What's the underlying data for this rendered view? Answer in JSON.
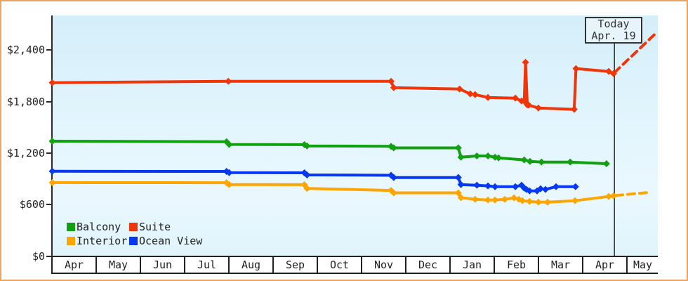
{
  "frame": {
    "border_color": "#e9a662"
  },
  "chart_data": {
    "type": "line",
    "x_unit_note": "x = months since the first April tick (0 = Apr 1); prices in USD read from y-axis",
    "x_axis": {
      "unit": "month",
      "labels": [
        "Apr",
        "May",
        "Jun",
        "Jul",
        "Aug",
        "Sep",
        "Oct",
        "Nov",
        "Dec",
        "Jan",
        "Feb",
        "Mar",
        "Apr",
        "May"
      ]
    },
    "y_axis": {
      "ticks": [
        0,
        600,
        1200,
        1800,
        2400
      ],
      "tick_labels": [
        "$0",
        "$600",
        "$1,200",
        "$1,800",
        "$2,400"
      ],
      "range": [
        0,
        2800
      ],
      "grid": false
    },
    "annotation": {
      "line1": "Today",
      "line2": "Apr. 19",
      "x": 12.67
    },
    "legend": {
      "position": "bottom-left",
      "entries": [
        {
          "label": "Balcony",
          "color": "#10a010"
        },
        {
          "label": "Suite",
          "color": "#f03508"
        },
        {
          "label": "Interior",
          "color": "#ffa500"
        },
        {
          "label": "Ocean View",
          "color": "#0538f0"
        }
      ]
    },
    "series": [
      {
        "name": "Balcony",
        "color": "#10a010",
        "points": [
          [
            -0.04,
            1340
          ],
          [
            3.9,
            1334
          ],
          [
            3.96,
            1302
          ],
          [
            5.66,
            1300
          ],
          [
            5.72,
            1285
          ],
          [
            7.62,
            1280
          ],
          [
            7.68,
            1262
          ],
          [
            9.14,
            1262
          ],
          [
            9.2,
            1154
          ],
          [
            9.56,
            1168
          ],
          [
            9.81,
            1168
          ],
          [
            9.97,
            1154
          ],
          [
            10.05,
            1146
          ],
          [
            10.63,
            1122
          ],
          [
            10.76,
            1105
          ],
          [
            11.02,
            1097
          ],
          [
            11.67,
            1097
          ],
          [
            12.49,
            1078
          ]
        ]
      },
      {
        "name": "Suite",
        "color": "#f03508",
        "points": [
          [
            -0.04,
            2022
          ],
          [
            3.94,
            2038
          ],
          [
            7.62,
            2038
          ],
          [
            7.68,
            1964
          ],
          [
            9.17,
            1948
          ],
          [
            9.41,
            1891
          ],
          [
            9.52,
            1883
          ],
          [
            9.81,
            1850
          ],
          [
            10.43,
            1842
          ],
          [
            10.57,
            1809
          ],
          [
            10.63,
            1809
          ],
          [
            10.66,
            2260
          ],
          [
            10.7,
            1764
          ],
          [
            10.73,
            1760
          ],
          [
            10.95,
            1727
          ],
          [
            11.76,
            1711
          ],
          [
            11.8,
            2186
          ],
          [
            12.54,
            2153
          ],
          [
            12.65,
            2128
          ]
        ],
        "forecast": [
          [
            12.67,
            2140
          ],
          [
            13.57,
            2580
          ]
        ]
      },
      {
        "name": "Interior",
        "color": "#ffa500",
        "points": [
          [
            -0.04,
            858
          ],
          [
            3.9,
            856
          ],
          [
            3.96,
            835
          ],
          [
            5.66,
            833
          ],
          [
            5.72,
            790
          ],
          [
            7.62,
            766
          ],
          [
            7.68,
            738
          ],
          [
            9.14,
            738
          ],
          [
            9.2,
            682
          ],
          [
            9.52,
            663
          ],
          [
            9.81,
            655
          ],
          [
            9.97,
            655
          ],
          [
            10.19,
            663
          ],
          [
            10.4,
            680
          ],
          [
            10.51,
            663
          ],
          [
            10.59,
            647
          ],
          [
            10.75,
            638
          ],
          [
            10.95,
            630
          ],
          [
            11.16,
            630
          ],
          [
            11.78,
            647
          ],
          [
            12.54,
            696
          ],
          [
            12.65,
            704
          ]
        ],
        "forecast": [
          [
            12.7,
            708
          ],
          [
            13.5,
            745
          ]
        ]
      },
      {
        "name": "Ocean View",
        "color": "#0538f0",
        "points": [
          [
            -0.04,
            990
          ],
          [
            3.9,
            988
          ],
          [
            3.96,
            974
          ],
          [
            5.66,
            972
          ],
          [
            5.72,
            947
          ],
          [
            7.62,
            943
          ],
          [
            7.68,
            917
          ],
          [
            9.14,
            917
          ],
          [
            9.2,
            835
          ],
          [
            9.56,
            827
          ],
          [
            9.81,
            819
          ],
          [
            9.97,
            810
          ],
          [
            10.43,
            810
          ],
          [
            10.57,
            827
          ],
          [
            10.63,
            794
          ],
          [
            10.68,
            778
          ],
          [
            10.75,
            761
          ],
          [
            10.92,
            761
          ],
          [
            11.0,
            786
          ],
          [
            11.11,
            778
          ],
          [
            11.35,
            810
          ],
          [
            11.79,
            810
          ]
        ]
      }
    ]
  }
}
